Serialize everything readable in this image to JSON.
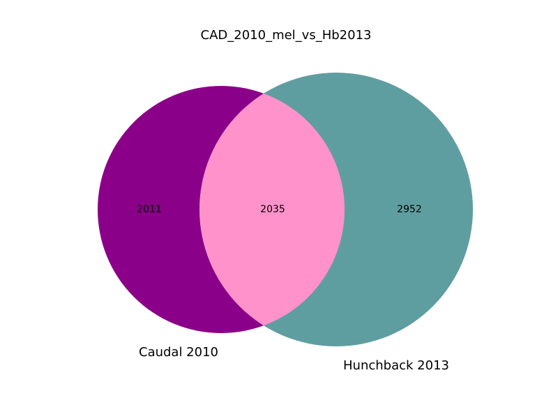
{
  "title": "CAD_2010_mel_vs_Hb2013",
  "chart_data": {
    "type": "venn",
    "title": "CAD_2010_mel_vs_Hb2013",
    "sets": [
      {
        "name": "Caudal 2010",
        "only": "2011",
        "color": "#8b0088"
      },
      {
        "name": "Hunchback 2013",
        "only": "2952",
        "color": "#5f9ea0"
      }
    ],
    "intersection": {
      "value": "2035",
      "color": "#ff92cb"
    }
  }
}
